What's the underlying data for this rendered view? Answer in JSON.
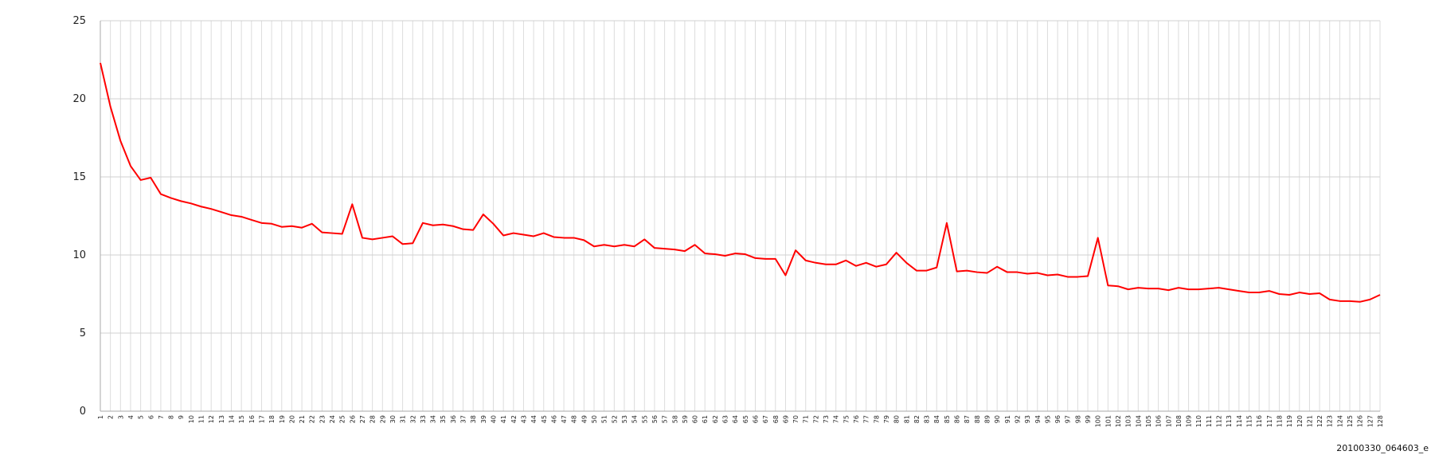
{
  "chart_data": {
    "type": "line",
    "title": "",
    "xlabel": "",
    "ylabel": "",
    "ylim": [
      0,
      25
    ],
    "yticks": [
      0,
      5,
      10,
      15,
      20,
      25
    ],
    "grid": true,
    "legend": "none",
    "x": [
      1,
      2,
      3,
      4,
      5,
      6,
      7,
      8,
      9,
      10,
      11,
      12,
      13,
      14,
      15,
      16,
      17,
      18,
      19,
      20,
      21,
      22,
      23,
      24,
      25,
      26,
      27,
      28,
      29,
      30,
      31,
      32,
      33,
      34,
      35,
      36,
      37,
      38,
      39,
      40,
      41,
      42,
      43,
      44,
      45,
      46,
      47,
      48,
      49,
      50,
      51,
      52,
      53,
      54,
      55,
      56,
      57,
      58,
      59,
      60,
      61,
      62,
      63,
      64,
      65,
      66,
      67,
      68,
      69,
      70,
      71,
      72,
      73,
      74,
      75,
      76,
      77,
      78,
      79,
      80,
      81,
      82,
      83,
      84,
      85,
      86,
      87,
      88,
      89,
      90,
      91,
      92,
      93,
      94,
      95,
      96,
      97,
      98,
      99,
      100,
      101,
      102,
      103,
      104,
      105,
      106,
      107,
      108,
      109,
      110,
      111,
      112,
      113,
      114,
      115,
      116,
      117,
      118,
      119,
      120,
      121,
      122,
      123,
      124,
      125,
      126,
      127,
      128
    ],
    "series": [
      {
        "color": "#ff0000",
        "values": [
          22.3,
          19.5,
          17.3,
          15.7,
          14.8,
          14.95,
          13.9,
          13.65,
          13.45,
          13.3,
          13.1,
          12.95,
          12.75,
          12.55,
          12.45,
          12.25,
          12.05,
          12.0,
          11.8,
          11.85,
          11.75,
          12.0,
          11.45,
          11.4,
          11.35,
          13.25,
          11.1,
          11.0,
          11.1,
          11.2,
          10.7,
          10.75,
          12.05,
          11.9,
          11.95,
          11.85,
          11.65,
          11.6,
          12.6,
          12.0,
          11.25,
          11.4,
          11.3,
          11.2,
          11.4,
          11.15,
          11.1,
          11.1,
          10.95,
          10.55,
          10.65,
          10.55,
          10.65,
          10.55,
          11.0,
          10.45,
          10.4,
          10.35,
          10.25,
          10.65,
          10.1,
          10.05,
          9.95,
          10.1,
          10.05,
          9.8,
          9.75,
          9.75,
          8.7,
          10.3,
          9.65,
          9.5,
          9.4,
          9.4,
          9.65,
          9.3,
          9.5,
          9.25,
          9.4,
          10.15,
          9.5,
          9.0,
          9.0,
          9.2,
          12.05,
          8.95,
          9.0,
          8.9,
          8.85,
          9.25,
          8.9,
          8.9,
          8.8,
          8.85,
          8.7,
          8.75,
          8.6,
          8.6,
          8.65,
          11.1,
          8.05,
          8.0,
          7.8,
          7.9,
          7.85,
          7.85,
          7.75,
          7.9,
          7.8,
          7.8,
          7.85,
          7.9,
          7.8,
          7.7,
          7.6,
          7.6,
          7.7,
          7.5,
          7.45,
          7.6,
          7.5,
          7.55,
          7.15,
          7.05,
          7.05,
          7.0,
          7.15,
          7.45
        ]
      }
    ]
  },
  "footer": {
    "label": "20100330_064603_e"
  }
}
